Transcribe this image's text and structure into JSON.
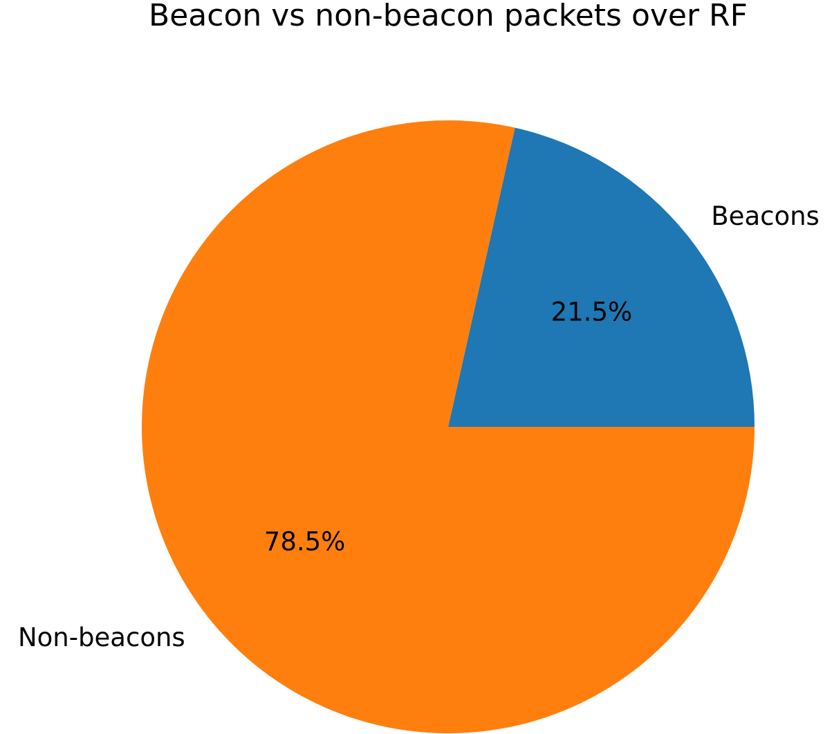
{
  "chart_data": {
    "type": "pie",
    "title": "Beacon vs non-beacon packets over RF",
    "slices": [
      {
        "label": "Beacons",
        "percent": 21.5,
        "percent_label": "21.5%",
        "color": "#1f77b4"
      },
      {
        "label": "Non-beacons",
        "percent": 78.5,
        "percent_label": "78.5%",
        "color": "#ff7f0e"
      }
    ],
    "start_angle_deg": 0,
    "direction": "counterclockwise"
  }
}
